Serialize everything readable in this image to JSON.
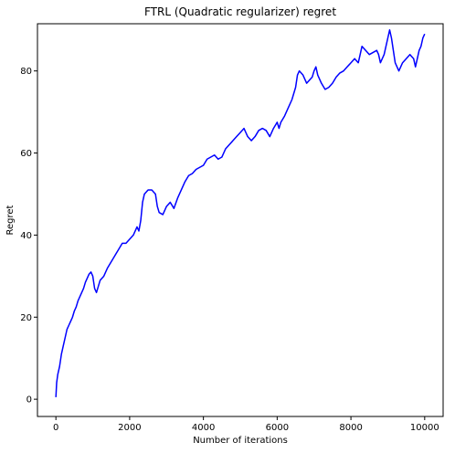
{
  "chart_data": {
    "type": "line",
    "title": "FTRL (Quadratic regularizer) regret",
    "xlabel": "Number of iterations",
    "ylabel": "Regret",
    "xlim": [
      -500,
      10500
    ],
    "ylim": [
      -4.2,
      91.5
    ],
    "xticks": [
      0,
      2000,
      4000,
      6000,
      8000,
      10000
    ],
    "yticks": [
      0,
      20,
      40,
      60,
      80
    ],
    "grid": false,
    "legend": "none",
    "series": [
      {
        "color": "#0000ff",
        "points": [
          [
            0,
            0.5
          ],
          [
            20,
            4
          ],
          [
            50,
            6
          ],
          [
            100,
            8
          ],
          [
            150,
            11
          ],
          [
            200,
            13
          ],
          [
            250,
            15
          ],
          [
            300,
            17
          ],
          [
            350,
            18
          ],
          [
            400,
            19
          ],
          [
            450,
            20
          ],
          [
            500,
            21.5
          ],
          [
            550,
            22.5
          ],
          [
            600,
            24
          ],
          [
            650,
            25
          ],
          [
            700,
            26
          ],
          [
            750,
            27
          ],
          [
            800,
            28.5
          ],
          [
            850,
            29.5
          ],
          [
            900,
            30.5
          ],
          [
            950,
            31
          ],
          [
            1000,
            30
          ],
          [
            1050,
            27
          ],
          [
            1100,
            26
          ],
          [
            1150,
            27.5
          ],
          [
            1200,
            29
          ],
          [
            1300,
            30
          ],
          [
            1400,
            32
          ],
          [
            1500,
            33.5
          ],
          [
            1600,
            35
          ],
          [
            1700,
            36.5
          ],
          [
            1800,
            38
          ],
          [
            1900,
            38
          ],
          [
            2000,
            39
          ],
          [
            2100,
            40
          ],
          [
            2200,
            42
          ],
          [
            2250,
            41
          ],
          [
            2300,
            43.5
          ],
          [
            2350,
            48
          ],
          [
            2400,
            50
          ],
          [
            2500,
            51
          ],
          [
            2600,
            51
          ],
          [
            2700,
            50
          ],
          [
            2750,
            47
          ],
          [
            2800,
            45.5
          ],
          [
            2900,
            45
          ],
          [
            3000,
            47
          ],
          [
            3100,
            48
          ],
          [
            3200,
            46.5
          ],
          [
            3300,
            49
          ],
          [
            3400,
            51
          ],
          [
            3500,
            53
          ],
          [
            3600,
            54.5
          ],
          [
            3700,
            55
          ],
          [
            3800,
            56
          ],
          [
            3900,
            56.5
          ],
          [
            4000,
            57
          ],
          [
            4100,
            58.5
          ],
          [
            4200,
            59
          ],
          [
            4300,
            59.5
          ],
          [
            4400,
            58.5
          ],
          [
            4500,
            59
          ],
          [
            4600,
            61
          ],
          [
            4700,
            62
          ],
          [
            4800,
            63
          ],
          [
            4900,
            64
          ],
          [
            5000,
            65
          ],
          [
            5100,
            66
          ],
          [
            5200,
            64
          ],
          [
            5300,
            63
          ],
          [
            5400,
            64
          ],
          [
            5500,
            65.5
          ],
          [
            5600,
            66
          ],
          [
            5700,
            65.5
          ],
          [
            5800,
            64
          ],
          [
            5900,
            66
          ],
          [
            6000,
            67.5
          ],
          [
            6050,
            66
          ],
          [
            6100,
            67.5
          ],
          [
            6200,
            69
          ],
          [
            6300,
            71
          ],
          [
            6400,
            73
          ],
          [
            6500,
            76
          ],
          [
            6550,
            79
          ],
          [
            6600,
            80
          ],
          [
            6700,
            79
          ],
          [
            6800,
            77
          ],
          [
            6900,
            78
          ],
          [
            6950,
            78.5
          ],
          [
            7000,
            80
          ],
          [
            7050,
            81
          ],
          [
            7100,
            79
          ],
          [
            7200,
            77
          ],
          [
            7300,
            75.5
          ],
          [
            7400,
            76
          ],
          [
            7500,
            77
          ],
          [
            7600,
            78.5
          ],
          [
            7700,
            79.5
          ],
          [
            7800,
            80
          ],
          [
            7900,
            81
          ],
          [
            8000,
            82
          ],
          [
            8100,
            83
          ],
          [
            8200,
            82
          ],
          [
            8250,
            84
          ],
          [
            8300,
            86
          ],
          [
            8400,
            85
          ],
          [
            8500,
            84
          ],
          [
            8600,
            84.5
          ],
          [
            8700,
            85
          ],
          [
            8750,
            84
          ],
          [
            8800,
            82
          ],
          [
            8850,
            83
          ],
          [
            8900,
            84
          ],
          [
            8950,
            86
          ],
          [
            9000,
            88
          ],
          [
            9050,
            90
          ],
          [
            9100,
            88
          ],
          [
            9150,
            85
          ],
          [
            9200,
            82
          ],
          [
            9300,
            80
          ],
          [
            9400,
            82
          ],
          [
            9500,
            83
          ],
          [
            9600,
            84
          ],
          [
            9700,
            83
          ],
          [
            9750,
            81
          ],
          [
            9800,
            83
          ],
          [
            9850,
            85
          ],
          [
            9900,
            86
          ],
          [
            9950,
            88
          ],
          [
            10000,
            89
          ]
        ]
      }
    ]
  }
}
